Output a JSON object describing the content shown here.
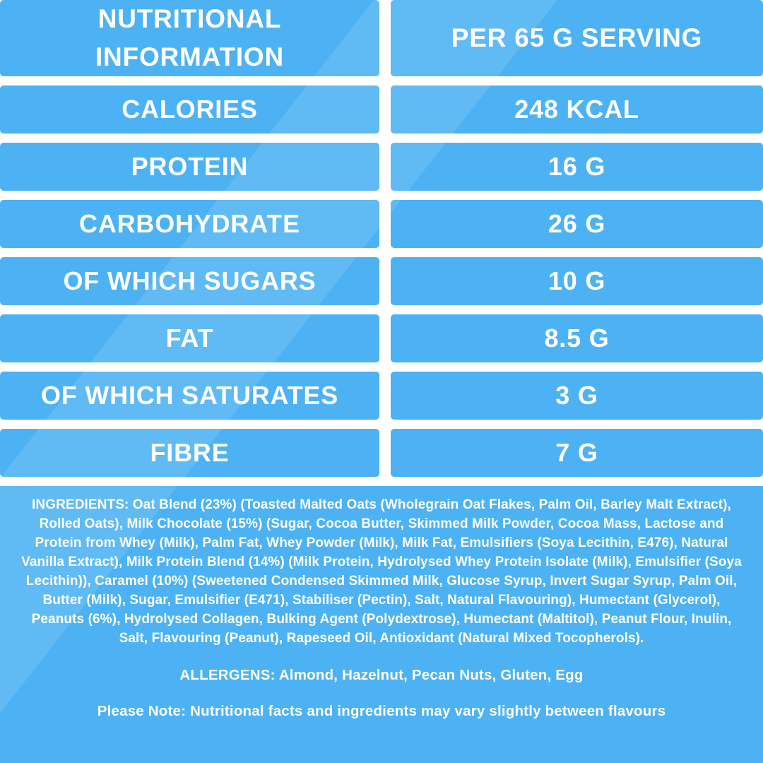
{
  "theme": {
    "base_blue": "#4DB2F3",
    "divider_white": "#FFFFFF",
    "text_white": "#FFFFFF"
  },
  "table": {
    "header": {
      "left": "NUTRITIONAL INFORMATION",
      "right": "PER 65 G SERVING"
    },
    "rows": [
      {
        "label": "CALORIES",
        "value": "248 KCAL"
      },
      {
        "label": "PROTEIN",
        "value": "16 G"
      },
      {
        "label": "CARBOHYDRATE",
        "value": "26 G"
      },
      {
        "label": "OF WHICH SUGARS",
        "value": "10 G"
      },
      {
        "label": "FAT",
        "value": "8.5 G"
      },
      {
        "label": "OF WHICH SATURATES",
        "value": "3 G"
      },
      {
        "label": "FIBRE",
        "value": "7 G"
      }
    ]
  },
  "details": {
    "ingredients": "INGREDIENTS: Oat Blend (23%) (Toasted Malted Oats (Wholegrain Oat Flakes, Palm Oil, Barley Malt Extract), Rolled Oats), Milk Chocolate (15%) (Sugar, Cocoa Butter, Skimmed Milk Powder, Cocoa Mass, Lactose and Protein from Whey (Milk), Palm Fat, Whey Powder (Milk), Milk Fat, Emulsifiers (Soya Lecithin, E476), Natural Vanilla Extract), Milk Protein Blend (14%) (Milk Protein, Hydrolysed Whey Protein Isolate (Milk), Emulsifier (Soya Lecithin)), Caramel (10%) (Sweetened Condensed Skimmed Milk, Glucose Syrup, Invert Sugar Syrup, Palm Oil, Butter (Milk), Sugar, Emulsifier (E471), Stabiliser (Pectin), Salt, Natural Flavouring), Humectant (Glycerol), Peanuts (6%), Hydrolysed Collagen, Bulking Agent (Polydextrose), Humectant (Maltitol), Peanut Flour, Inulin, Salt, Flavouring (Peanut), Rapeseed Oil, Antioxidant (Natural Mixed Tocopherols).",
    "allergens": "ALLERGENS: Almond, Hazelnut, Pecan Nuts, Gluten, Egg",
    "note": "Please Note: Nutritional facts and ingredients may vary slightly between flavours"
  }
}
